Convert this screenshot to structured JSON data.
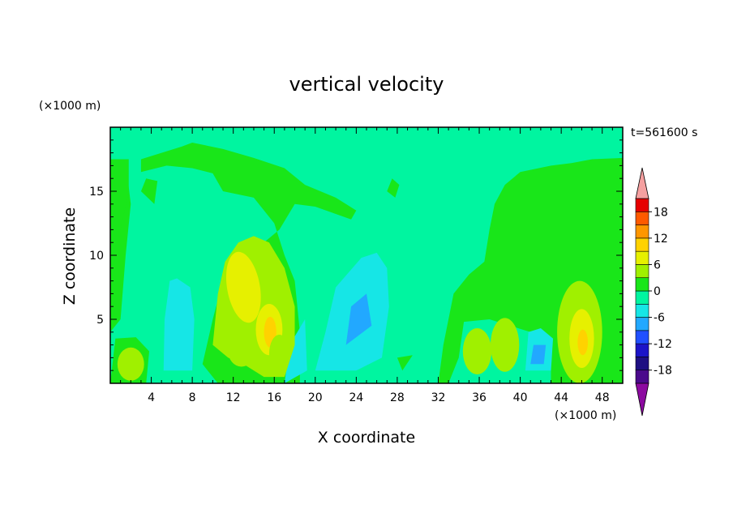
{
  "chart_data": {
    "type": "heatmap",
    "title": "vertical velocity",
    "xlabel": "X coordinate",
    "ylabel": "Z coordinate",
    "x_unit_label": "(×1000 m)",
    "y_unit_label": "(×1000 m)",
    "time_label": "t=561600 s",
    "xlim": [
      0,
      50
    ],
    "ylim": [
      0,
      20
    ],
    "x_ticks": [
      "4",
      "8",
      "12",
      "16",
      "20",
      "24",
      "28",
      "32",
      "36",
      "40",
      "44",
      "48"
    ],
    "x_tick_values": [
      4,
      8,
      12,
      16,
      20,
      24,
      28,
      32,
      36,
      40,
      44,
      48
    ],
    "y_ticks": [
      "5",
      "10",
      "15"
    ],
    "y_tick_values": [
      5,
      10,
      15
    ],
    "colorbar": {
      "levels": [
        -21,
        -18,
        -15,
        -12,
        -9,
        -6,
        -3,
        0,
        3,
        6,
        9,
        12,
        15,
        18,
        21
      ],
      "labels": [
        "18",
        "12",
        "6",
        "0",
        "-6",
        "-12",
        "-18"
      ],
      "label_values": [
        18,
        12,
        6,
        0,
        -6,
        -12,
        -18
      ],
      "colors": [
        "#4b0a8c",
        "#1e0f82",
        "#1c14c8",
        "#2050ff",
        "#22a8ff",
        "#16e6e6",
        "#00f5a0",
        "#19e619",
        "#a0f000",
        "#e6f000",
        "#ffd200",
        "#ff9600",
        "#ff5a00",
        "#e60000"
      ],
      "over_color": "#f5a0a0",
      "under_color": "#8c0aa0"
    },
    "background_value_range": [
      -3,
      0
    ],
    "features": [
      {
        "type": "updraft",
        "x": 13,
        "z": 7.5,
        "peak": 6
      },
      {
        "type": "updraft",
        "x": 15.5,
        "z": 4,
        "peak": 9
      },
      {
        "type": "updraft",
        "x": 16.5,
        "z": 2,
        "peak": 3
      },
      {
        "type": "updraft",
        "x": 2,
        "z": 1.5,
        "peak": 3
      },
      {
        "type": "updraft",
        "x": 36,
        "z": 2.5,
        "peak": 3
      },
      {
        "type": "updraft",
        "x": 38.5,
        "z": 3,
        "peak": 3
      },
      {
        "type": "updraft",
        "x": 46,
        "z": 3.5,
        "peak": 9
      },
      {
        "type": "downdraft",
        "x": 8,
        "z": 4,
        "peak": -3
      },
      {
        "type": "downdraft",
        "x": 25,
        "z": 4,
        "peak": -6
      },
      {
        "type": "downdraft",
        "x": 42,
        "z": 2.5,
        "peak": -6
      }
    ]
  }
}
